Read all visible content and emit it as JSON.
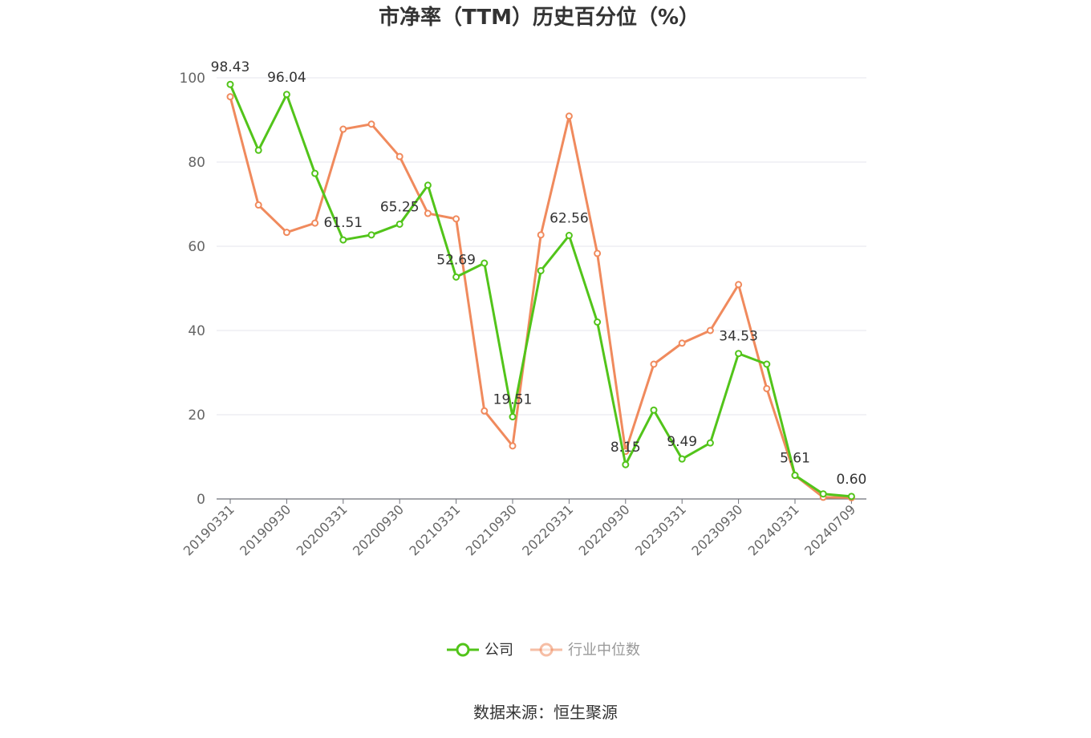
{
  "chart_data": {
    "type": "line",
    "title": "市净率（TTM）历史百分位（%）",
    "xlabel": "",
    "ylabel": "",
    "ylim": [
      0,
      100
    ],
    "yticks": [
      0,
      20,
      40,
      60,
      80,
      100
    ],
    "grid": true,
    "legend_position": "bottom",
    "x": [
      "20190331",
      "20190630",
      "20190930",
      "20191231",
      "20200331",
      "20200630",
      "20200930",
      "20201231",
      "20210331",
      "20210630",
      "20210930",
      "20211231",
      "20220331",
      "20220630",
      "20220930",
      "20221231",
      "20230331",
      "20230630",
      "20230930",
      "20231231",
      "20240331",
      "20240630",
      "20240709"
    ],
    "x_tick_labels": [
      "20190331",
      "20190930",
      "20200331",
      "20200930",
      "20210331",
      "20210930",
      "20220331",
      "20220930",
      "20230331",
      "20230930",
      "20240331",
      "20240709"
    ],
    "series": [
      {
        "name": "公司",
        "color": "#52c41a",
        "values": [
          98.43,
          82.8,
          96.04,
          77.3,
          61.51,
          62.7,
          65.25,
          74.5,
          52.69,
          56.0,
          19.51,
          54.2,
          62.56,
          42.0,
          8.15,
          21.1,
          9.49,
          13.3,
          34.53,
          32.0,
          5.61,
          1.2,
          0.6
        ],
        "labels": [
          "98.43",
          "",
          "96.04",
          "",
          "61.51",
          "",
          "65.25",
          "",
          "52.69",
          "",
          "19.51",
          "",
          "62.56",
          "",
          "8.15",
          "",
          "9.49",
          "",
          "34.53",
          "",
          "5.61",
          "",
          "0.60"
        ]
      },
      {
        "name": "行业中位数",
        "color": "#f08a5d",
        "values": [
          95.5,
          69.8,
          63.3,
          65.5,
          87.8,
          89.0,
          81.3,
          67.8,
          66.5,
          20.9,
          12.6,
          62.7,
          90.9,
          58.3,
          11.3,
          32.0,
          37.0,
          40.0,
          50.9,
          26.2,
          5.6,
          0.4,
          0.3
        ],
        "labels": []
      }
    ]
  },
  "source": "数据来源：恒生聚源"
}
